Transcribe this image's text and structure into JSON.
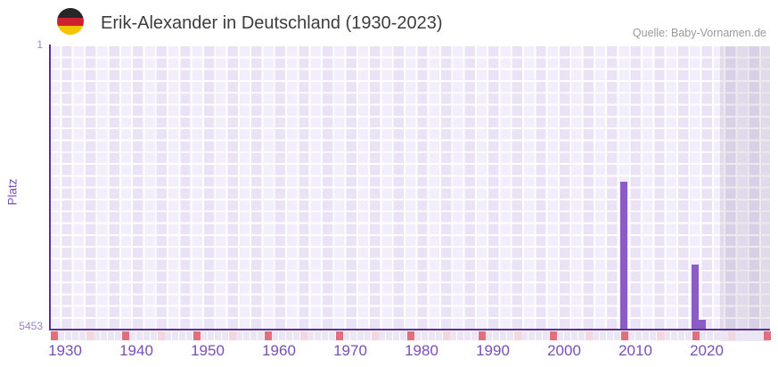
{
  "header": {
    "title": "Erik-Alexander in Deutschland (1930-2023)",
    "flag_icon": "german-flag-icon",
    "source": "Quelle: Baby-Vornamen.de"
  },
  "chart_data": {
    "type": "bar",
    "title": "Erik-Alexander in Deutschland (1930-2023)",
    "source": "Quelle: Baby-Vornamen.de",
    "ylabel": "Platz",
    "y_axis": {
      "top_tick_label": "1",
      "bottom_tick_label": "5453",
      "min": 1,
      "max": 5453,
      "inverted": true
    },
    "x_axis": {
      "min_year": 1930,
      "max_year": 2030,
      "data_last_year": 2023,
      "tick_years": [
        1930,
        1940,
        1950,
        1960,
        1970,
        1980,
        1990,
        2000,
        2010,
        2020
      ],
      "decade_marker_interval": 10,
      "half_decade_marker_interval": 5
    },
    "bars": [
      {
        "year": 2010,
        "rank": 2600
      },
      {
        "year": 2020,
        "rank": 4200
      },
      {
        "year": 2021,
        "rank": 5265
      }
    ],
    "legend": "none",
    "grid": "checkered-lavender",
    "colors": {
      "bar": "#8b5cc6",
      "axis": "#5b3092",
      "x_tick_label": "#7a4fb6",
      "y_tick_label": "#9c82c8",
      "y_axis_title": "#7a4fb6",
      "decade_marker": "#e06f7c",
      "half_decade_marker": "#f3d6de",
      "year_marker": "#ebe5f5",
      "cell_light": "#f3eefb",
      "cell_dark": "#eae3f5",
      "flag_black": "#272727",
      "flag_red": "#cb2130",
      "flag_gold": "#f4c500"
    }
  }
}
